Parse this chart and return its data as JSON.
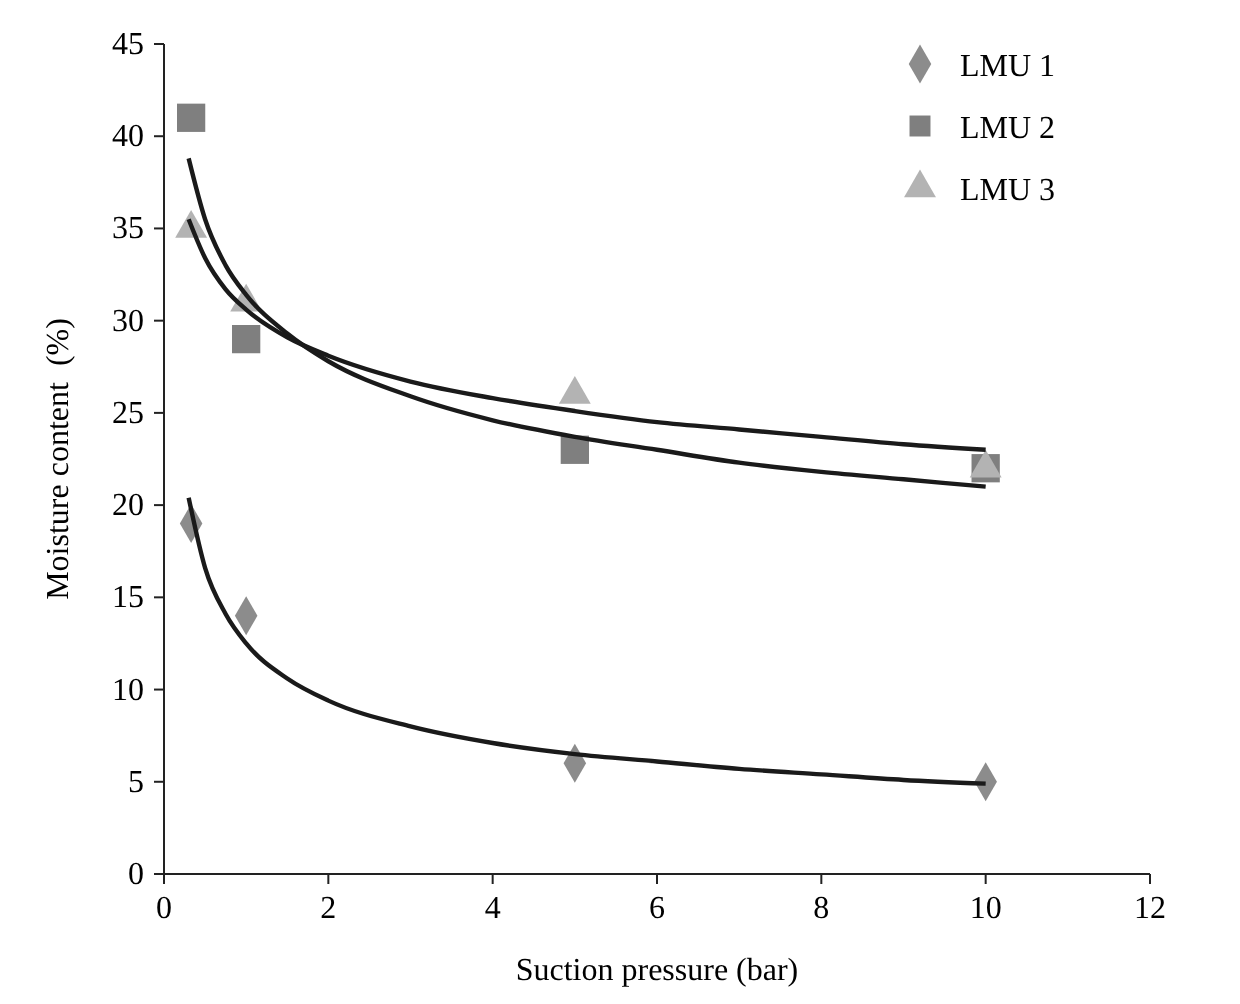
{
  "chart_data": {
    "type": "scatter",
    "xlabel": "Suction pressure (bar)",
    "ylabel": "Moisture content  (%)",
    "xlim": [
      0,
      12
    ],
    "ylim": [
      0,
      45
    ],
    "xticks": [
      0,
      2,
      4,
      6,
      8,
      10,
      12
    ],
    "yticks": [
      0,
      5,
      10,
      15,
      20,
      25,
      30,
      35,
      40,
      45
    ],
    "grid": false,
    "legend": "top right",
    "series": [
      {
        "name": "LMU 1",
        "color": "#8c8c8c",
        "marker": "diamond",
        "x": [
          0.33,
          1,
          5,
          10
        ],
        "values": [
          19,
          14,
          6,
          5
        ]
      },
      {
        "name": "LMU 2",
        "color": "#7f7f7f",
        "marker": "square",
        "x": [
          0.33,
          1,
          5,
          10
        ],
        "values": [
          41,
          29,
          23,
          22
        ]
      },
      {
        "name": "LMU 3",
        "color": "#b3b3b3",
        "marker": "triangle",
        "x": [
          0.33,
          1,
          5,
          10
        ],
        "values": [
          35,
          31,
          26,
          22
        ]
      },
      {
        "type": "line",
        "color": "#1a1a1a",
        "marker": "none",
        "x": [
          0.3,
          0.5,
          0.75,
          1,
          1.5,
          2,
          3,
          4,
          5,
          6,
          7,
          8,
          9,
          10
        ],
        "values": [
          20.4,
          16.6,
          14.1,
          12.5,
          10.6,
          9.4,
          8.0,
          7.1,
          6.5,
          6.1,
          5.7,
          5.4,
          5.1,
          4.9
        ]
      },
      {
        "type": "line",
        "color": "#1a1a1a",
        "marker": "none",
        "x": [
          0.3,
          0.5,
          0.75,
          1,
          1.5,
          2,
          3,
          4,
          5,
          6,
          7,
          8,
          9,
          10
        ],
        "values": [
          38.8,
          35.5,
          33.0,
          31.4,
          29.3,
          27.8,
          25.9,
          24.6,
          23.7,
          23.0,
          22.3,
          21.8,
          21.4,
          21.0
        ]
      },
      {
        "type": "line",
        "color": "#1a1a1a",
        "marker": "none",
        "x": [
          0.3,
          0.5,
          0.75,
          1,
          1.5,
          2,
          3,
          4,
          5,
          6,
          7,
          8,
          9,
          10
        ],
        "values": [
          35.5,
          33.4,
          31.7,
          30.6,
          29.1,
          28.1,
          26.7,
          25.8,
          25.1,
          24.5,
          24.1,
          23.7,
          23.3,
          23.0
        ]
      }
    ]
  }
}
